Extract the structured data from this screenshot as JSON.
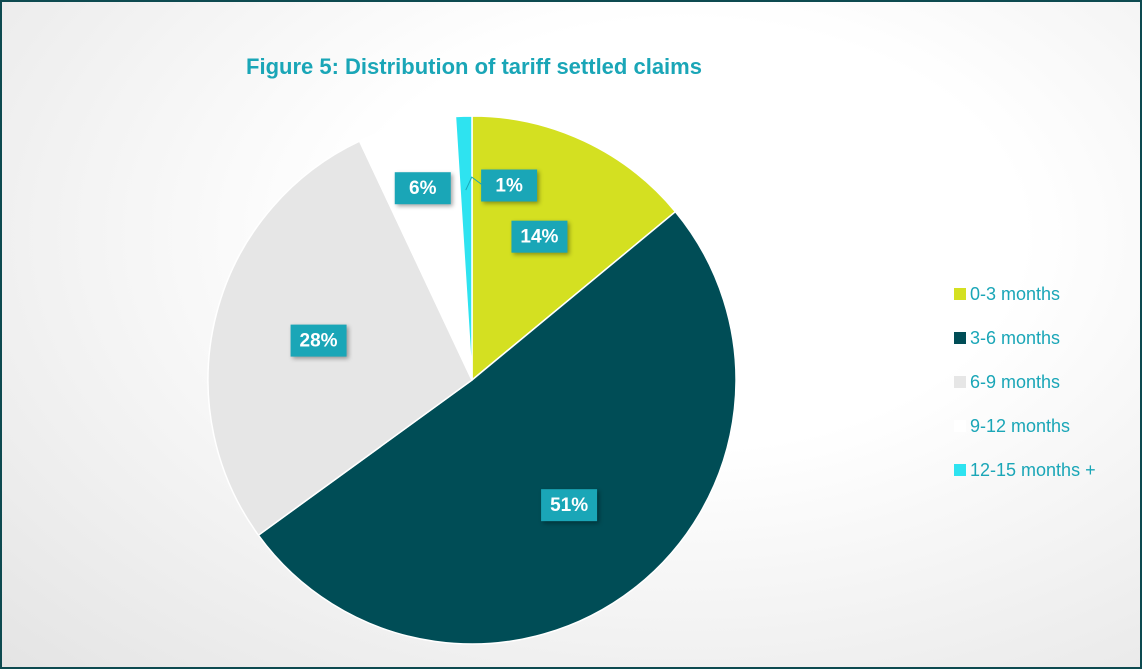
{
  "chart_data": {
    "type": "pie",
    "title": "Figure 5: Distribution of tariff settled claims",
    "categories": [
      "0-3 months",
      "3-6 months",
      "6-9 months",
      "9-12 months",
      "12-15 months +"
    ],
    "values": [
      14,
      51,
      28,
      6,
      1
    ],
    "value_labels": [
      "14%",
      "51%",
      "28%",
      "6%",
      "1%"
    ],
    "colors": [
      "#d4e021",
      "#004d56",
      "#e6e6e6",
      "#ffffff",
      "#2ee3f0"
    ],
    "legend": "right"
  }
}
